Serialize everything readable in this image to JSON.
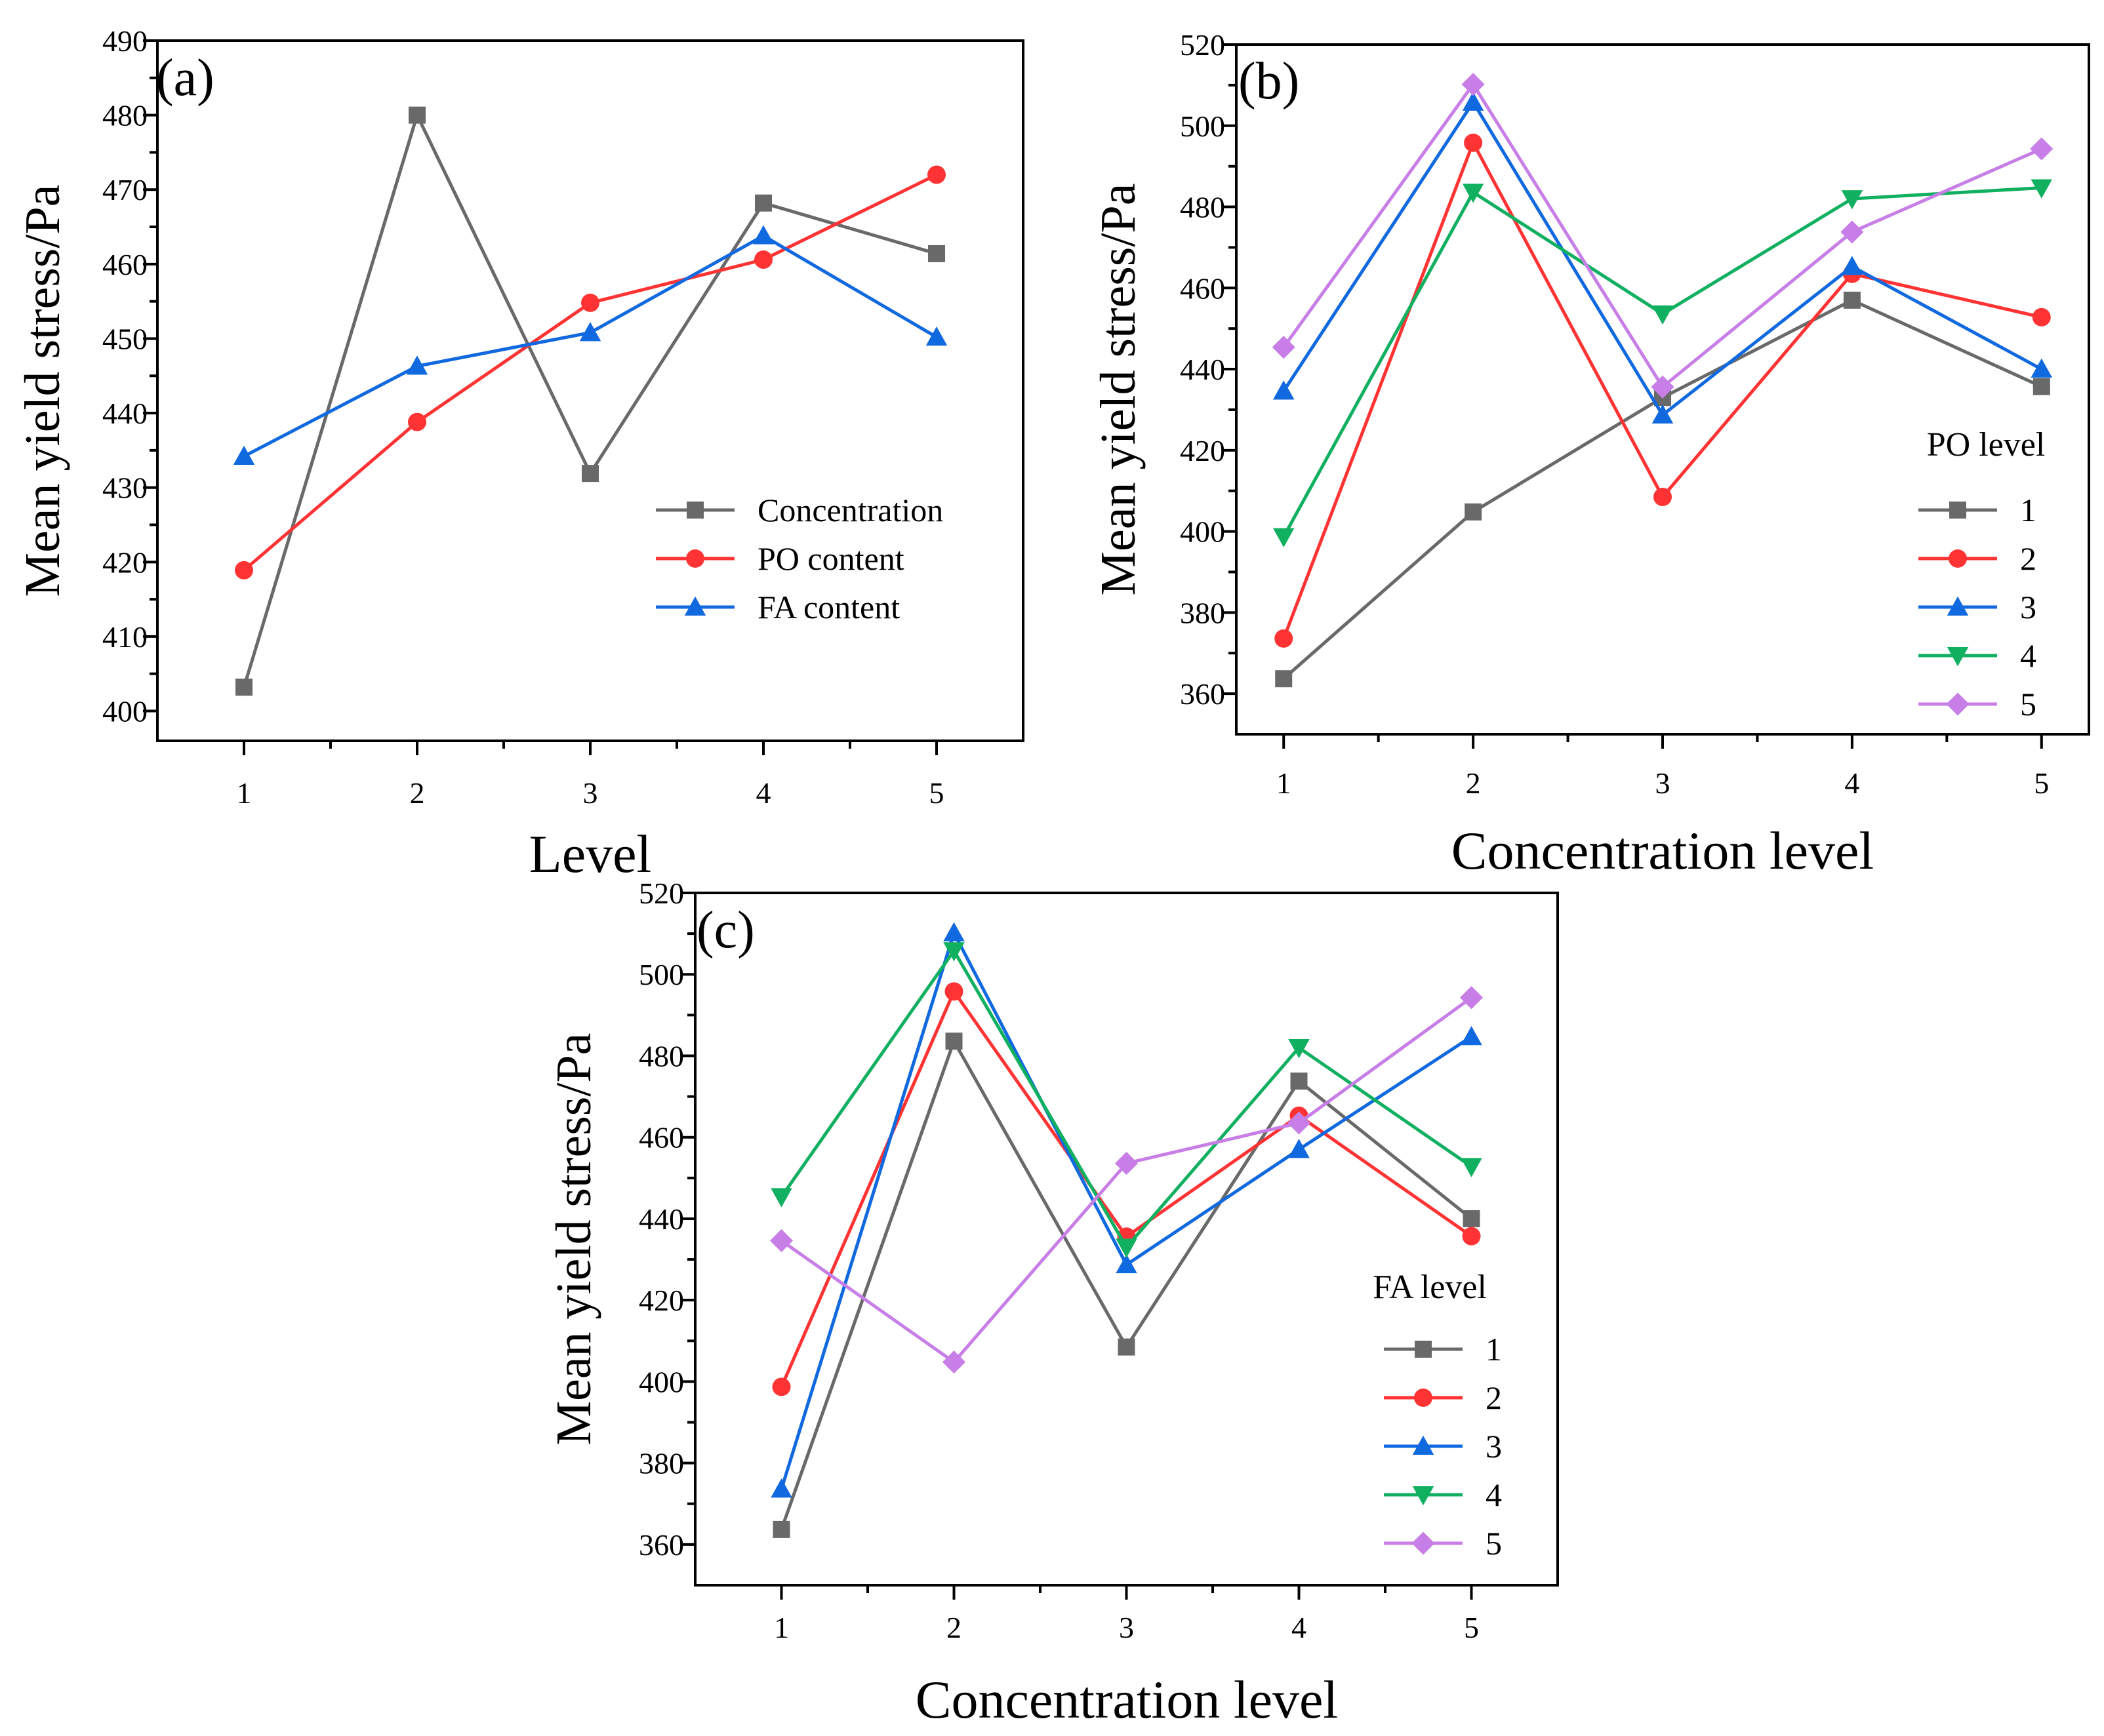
{
  "colors": {
    "gray": "#696969",
    "red": "#ff3333",
    "blue": "#1169df",
    "green": "#11b060",
    "violet": "#c77ee6"
  },
  "chart_data": [
    {
      "id": "a",
      "type": "line",
      "panel_label": "(a)",
      "xlabel": "Level",
      "ylabel": "Mean yield stress/Pa",
      "x": [
        1,
        2,
        3,
        4,
        5
      ],
      "xticks": [
        "1",
        "2",
        "3",
        "4",
        "5"
      ],
      "xlim": [
        0.5,
        5.5
      ],
      "ylim": [
        396,
        490
      ],
      "yticks": [
        400,
        410,
        420,
        430,
        440,
        450,
        460,
        470,
        480,
        490
      ],
      "legend_title": "",
      "legend_position": "right",
      "series": [
        {
          "name": "Concentration",
          "color": "#696969",
          "marker": "square",
          "values": [
            403.2,
            480.0,
            431.9,
            468.2,
            461.4
          ]
        },
        {
          "name": "PO content",
          "color": "#ff3333",
          "marker": "circle",
          "values": [
            418.9,
            438.8,
            454.8,
            460.6,
            472.0
          ]
        },
        {
          "name": "FA content",
          "color": "#1169df",
          "marker": "triangle-up",
          "values": [
            434.2,
            446.3,
            450.8,
            463.8,
            450.2
          ]
        }
      ]
    },
    {
      "id": "b",
      "type": "line",
      "panel_label": "(b)",
      "xlabel": "Concentration level",
      "ylabel": "Mean yield stress/Pa",
      "x": [
        1,
        2,
        3,
        4,
        5
      ],
      "xticks": [
        "1",
        "2",
        "3",
        "4",
        "5"
      ],
      "xlim": [
        0.75,
        5.25
      ],
      "ylim": [
        350,
        520
      ],
      "yticks": [
        360,
        380,
        400,
        420,
        440,
        460,
        480,
        500,
        520
      ],
      "legend_title": "PO level",
      "legend_position": "right",
      "series": [
        {
          "name": "1",
          "color": "#696969",
          "marker": "square",
          "values": [
            363.7,
            404.8,
            433.0,
            457.0,
            435.7
          ]
        },
        {
          "name": "2",
          "color": "#ff3333",
          "marker": "circle",
          "values": [
            373.6,
            495.8,
            408.5,
            463.5,
            452.8
          ]
        },
        {
          "name": "3",
          "color": "#1169df",
          "marker": "triangle-up",
          "values": [
            434.6,
            505.8,
            428.7,
            465.3,
            440.0
          ]
        },
        {
          "name": "4",
          "color": "#11b060",
          "marker": "triangle-down",
          "values": [
            398.7,
            483.6,
            453.6,
            482.0,
            484.7
          ]
        },
        {
          "name": "5",
          "color": "#c77ee6",
          "marker": "diamond",
          "values": [
            445.4,
            510.2,
            435.6,
            473.8,
            494.3
          ]
        }
      ]
    },
    {
      "id": "c",
      "type": "line",
      "panel_label": "(c)",
      "xlabel": "Concentration level",
      "ylabel": "Mean yield stress/Pa",
      "x": [
        1,
        2,
        3,
        4,
        5
      ],
      "xticks": [
        "1",
        "2",
        "3",
        "4",
        "5"
      ],
      "xlim": [
        0.5,
        5.5
      ],
      "ylim": [
        350,
        520
      ],
      "yticks": [
        360,
        380,
        400,
        420,
        440,
        460,
        480,
        500,
        520
      ],
      "legend_title": "FA level",
      "legend_position": "right",
      "series": [
        {
          "name": "1",
          "color": "#696969",
          "marker": "square",
          "values": [
            363.7,
            483.6,
            408.5,
            473.8,
            440.0
          ]
        },
        {
          "name": "2",
          "color": "#ff3333",
          "marker": "circle",
          "values": [
            398.7,
            495.8,
            435.6,
            465.3,
            435.7
          ]
        },
        {
          "name": "3",
          "color": "#1169df",
          "marker": "triangle-up",
          "values": [
            373.6,
            510.2,
            428.7,
            457.0,
            484.7
          ]
        },
        {
          "name": "4",
          "color": "#11b060",
          "marker": "triangle-down",
          "values": [
            445.4,
            505.8,
            433.0,
            482.0,
            452.8
          ]
        },
        {
          "name": "5",
          "color": "#c77ee6",
          "marker": "diamond",
          "values": [
            434.6,
            404.8,
            453.6,
            463.5,
            494.3
          ]
        }
      ]
    }
  ]
}
